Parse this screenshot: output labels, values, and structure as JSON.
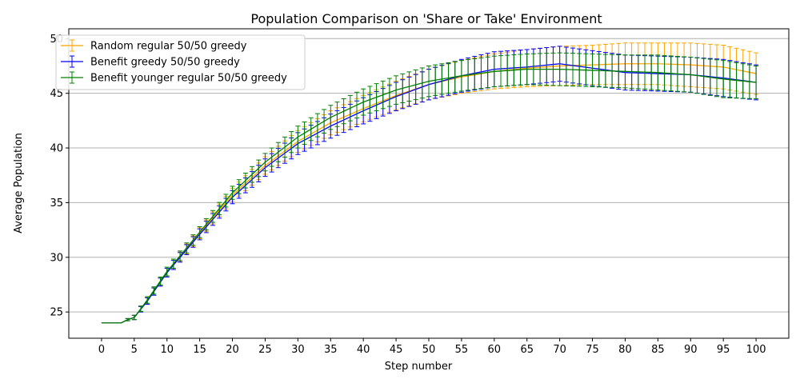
{
  "chart_data": {
    "type": "line",
    "title": "Population Comparison on 'Share or Take' Environment",
    "xlabel": "Step number",
    "ylabel": "Average Population",
    "xlim": [
      -5,
      105
    ],
    "ylim": [
      22.6,
      50.9
    ],
    "x_ticks": [
      0,
      5,
      10,
      15,
      20,
      25,
      30,
      35,
      40,
      45,
      50,
      55,
      60,
      65,
      70,
      75,
      80,
      85,
      90,
      95,
      100
    ],
    "y_ticks": [
      25,
      30,
      35,
      40,
      45,
      50
    ],
    "grid": "horizontal",
    "legend_position": "top-left",
    "error_bars": true,
    "series": [
      {
        "name": "Random regular 50/50 greedy",
        "color": "#ffa500",
        "points": [
          [
            0,
            24.0,
            0.0
          ],
          [
            3,
            24.0,
            0.0
          ],
          [
            4,
            24.3,
            0.1
          ],
          [
            5,
            24.5,
            0.2
          ],
          [
            7,
            26.0,
            0.3
          ],
          [
            10,
            28.6,
            0.4
          ],
          [
            15,
            32.2,
            0.5
          ],
          [
            20,
            35.7,
            0.6
          ],
          [
            25,
            38.4,
            0.8
          ],
          [
            30,
            40.6,
            1.0
          ],
          [
            35,
            42.3,
            1.1
          ],
          [
            40,
            43.6,
            1.2
          ],
          [
            45,
            44.8,
            1.3
          ],
          [
            50,
            45.8,
            1.4
          ],
          [
            55,
            46.5,
            1.5
          ],
          [
            60,
            47.0,
            1.6
          ],
          [
            65,
            47.3,
            1.7
          ],
          [
            70,
            47.5,
            1.8
          ],
          [
            75,
            47.6,
            1.8
          ],
          [
            80,
            47.7,
            1.9
          ],
          [
            85,
            47.7,
            1.9
          ],
          [
            90,
            47.6,
            2.0
          ],
          [
            95,
            47.4,
            2.0
          ],
          [
            100,
            46.8,
            1.9
          ]
        ]
      },
      {
        "name": "Benefit greedy 50/50 greedy",
        "color": "#0000ff",
        "points": [
          [
            0,
            24.0,
            0.0
          ],
          [
            3,
            24.0,
            0.0
          ],
          [
            4,
            24.3,
            0.1
          ],
          [
            5,
            24.5,
            0.2
          ],
          [
            7,
            26.0,
            0.3
          ],
          [
            10,
            28.6,
            0.4
          ],
          [
            15,
            32.1,
            0.5
          ],
          [
            20,
            35.5,
            0.6
          ],
          [
            25,
            38.2,
            0.8
          ],
          [
            30,
            40.4,
            1.0
          ],
          [
            35,
            42.0,
            1.1
          ],
          [
            40,
            43.4,
            1.2
          ],
          [
            45,
            44.7,
            1.3
          ],
          [
            50,
            45.8,
            1.4
          ],
          [
            55,
            46.6,
            1.5
          ],
          [
            60,
            47.2,
            1.6
          ],
          [
            65,
            47.4,
            1.6
          ],
          [
            70,
            47.7,
            1.6
          ],
          [
            75,
            47.3,
            1.6
          ],
          [
            80,
            46.9,
            1.6
          ],
          [
            85,
            46.8,
            1.6
          ],
          [
            90,
            46.7,
            1.6
          ],
          [
            95,
            46.4,
            1.7
          ],
          [
            100,
            46.0,
            1.6
          ]
        ]
      },
      {
        "name": "Benefit younger regular 50/50 greedy",
        "color": "#008000",
        "points": [
          [
            0,
            24.0,
            0.0
          ],
          [
            3,
            24.0,
            0.0
          ],
          [
            4,
            24.3,
            0.1
          ],
          [
            5,
            24.5,
            0.2
          ],
          [
            7,
            26.1,
            0.3
          ],
          [
            10,
            28.7,
            0.4
          ],
          [
            15,
            32.3,
            0.5
          ],
          [
            20,
            35.9,
            0.6
          ],
          [
            25,
            38.7,
            0.8
          ],
          [
            30,
            41.0,
            1.0
          ],
          [
            35,
            42.8,
            1.1
          ],
          [
            40,
            44.2,
            1.2
          ],
          [
            45,
            45.3,
            1.3
          ],
          [
            50,
            46.1,
            1.4
          ],
          [
            55,
            46.6,
            1.4
          ],
          [
            60,
            47.0,
            1.4
          ],
          [
            65,
            47.2,
            1.4
          ],
          [
            70,
            47.2,
            1.5
          ],
          [
            75,
            47.1,
            1.5
          ],
          [
            80,
            47.0,
            1.5
          ],
          [
            85,
            46.9,
            1.6
          ],
          [
            90,
            46.7,
            1.6
          ],
          [
            95,
            46.3,
            1.7
          ],
          [
            100,
            46.0,
            1.5
          ]
        ]
      }
    ]
  }
}
